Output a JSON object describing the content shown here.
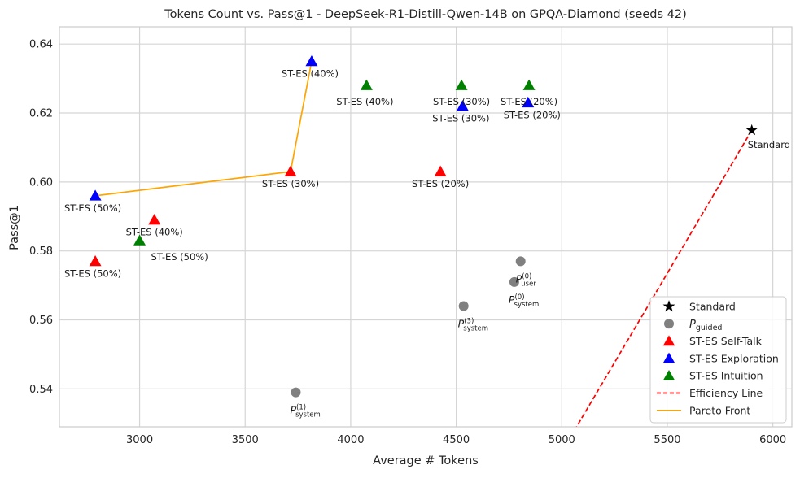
{
  "chart_data": {
    "type": "scatter",
    "title": "Tokens Count vs. Pass@1 - DeepSeek-R1-Distill-Qwen-14B on GPQA-Diamond (seeds 42)",
    "xlabel": "Average # Tokens",
    "ylabel": "Pass@1",
    "xlim": [
      2620,
      6090
    ],
    "ylim": [
      0.529,
      0.645
    ],
    "x_ticks": [
      3000,
      3500,
      4000,
      4500,
      5000,
      5500,
      6000
    ],
    "y_ticks": [
      0.54,
      0.56,
      0.58,
      0.6,
      0.62,
      0.64
    ],
    "x_tick_labels": [
      "3000",
      "3500",
      "4000",
      "4500",
      "5000",
      "5500",
      "6000"
    ],
    "y_tick_labels": [
      "0.54",
      "0.56",
      "0.58",
      "0.60",
      "0.62",
      "0.64"
    ],
    "grid": true,
    "legend_position": "bottom-right",
    "series": [
      {
        "name": "Standard",
        "marker": "star",
        "color": "#000000",
        "points": [
          {
            "x": 5900,
            "y": 0.615,
            "label": "Standard"
          }
        ]
      },
      {
        "name": "P_guided",
        "marker": "circle",
        "color": "#808080",
        "points": [
          {
            "x": 4805,
            "y": 0.577,
            "label": "P_user^(0)"
          },
          {
            "x": 4775,
            "y": 0.571,
            "label": "P_system^(0)"
          },
          {
            "x": 4535,
            "y": 0.564,
            "label": "P_system^(3)"
          },
          {
            "x": 3740,
            "y": 0.539,
            "label": "P_system^(1)"
          }
        ]
      },
      {
        "name": "ST-ES Self-Talk",
        "marker": "triangle",
        "color": "#ff0000",
        "points": [
          {
            "x": 3715,
            "y": 0.603,
            "label": "ST-ES (30%)"
          },
          {
            "x": 4425,
            "y": 0.603,
            "label": "ST-ES (20%)"
          },
          {
            "x": 3070,
            "y": 0.589,
            "label": "ST-ES (40%)"
          },
          {
            "x": 2790,
            "y": 0.577,
            "label": "ST-ES (50%)"
          }
        ]
      },
      {
        "name": "ST-ES Exploration",
        "marker": "triangle",
        "color": "#0000ff",
        "points": [
          {
            "x": 3815,
            "y": 0.635,
            "label": "ST-ES (40%)"
          },
          {
            "x": 4530,
            "y": 0.622,
            "label": "ST-ES (30%)"
          },
          {
            "x": 4840,
            "y": 0.623,
            "label": "ST-ES (20%)"
          },
          {
            "x": 2790,
            "y": 0.596,
            "label": "ST-ES (50%)"
          }
        ]
      },
      {
        "name": "ST-ES Intuition",
        "marker": "triangle",
        "color": "#008000",
        "points": [
          {
            "x": 4075,
            "y": 0.628,
            "label": "ST-ES (40%)"
          },
          {
            "x": 4525,
            "y": 0.628,
            "label": "ST-ES (30%)"
          },
          {
            "x": 4845,
            "y": 0.628,
            "label": "ST-ES (20%)"
          },
          {
            "x": 3000,
            "y": 0.583,
            "label": "ST-ES (50%)"
          }
        ]
      }
    ],
    "lines": [
      {
        "name": "Efficiency Line",
        "style": "dashed",
        "color": "#ff0000",
        "points": [
          {
            "x": 5900,
            "y": 0.615
          },
          {
            "x": 5070,
            "y": 0.529
          }
        ]
      },
      {
        "name": "Pareto Front",
        "style": "solid",
        "color": "#ffa500",
        "points": [
          {
            "x": 2790,
            "y": 0.596
          },
          {
            "x": 3715,
            "y": 0.603
          },
          {
            "x": 3815,
            "y": 0.635
          }
        ]
      }
    ],
    "legend": [
      {
        "label": "Standard",
        "marker": "star",
        "color": "#000000"
      },
      {
        "label": "P_guided",
        "marker": "circle",
        "color": "#808080"
      },
      {
        "label": "ST-ES Self-Talk",
        "marker": "triangle",
        "color": "#ff0000"
      },
      {
        "label": "ST-ES Exploration",
        "marker": "triangle",
        "color": "#0000ff"
      },
      {
        "label": "ST-ES Intuition",
        "marker": "triangle",
        "color": "#008000"
      },
      {
        "label": "Efficiency Line",
        "marker": "dashed-line",
        "color": "#ff0000"
      },
      {
        "label": "Pareto Front",
        "marker": "solid-line",
        "color": "#ffa500"
      }
    ]
  }
}
